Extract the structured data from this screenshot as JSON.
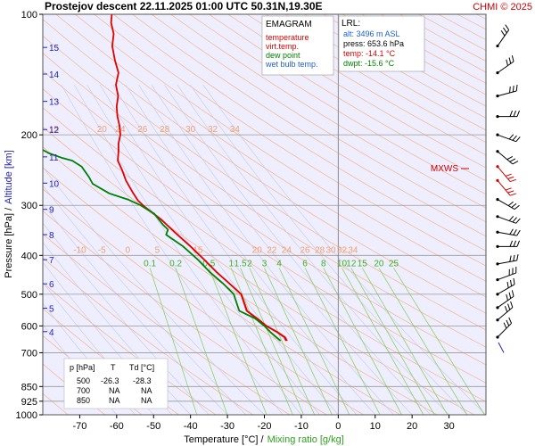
{
  "header": {
    "title": "Prostejov   descent   22.11.2025 01:00 UTC  50.31N,19.30E",
    "copyright": "CHMI © 2025"
  },
  "legend": {
    "title": "EMAGRAM",
    "items": [
      {
        "label": "temperature",
        "color": "#e00000"
      },
      {
        "label": "virt.temp.",
        "color": "#e00000"
      },
      {
        "label": "dew point",
        "color": "#008000"
      },
      {
        "label": "wet bulb temp.",
        "color": "#2060d0"
      }
    ]
  },
  "lrl": {
    "title": "LRL:",
    "alt": "alt: 3496 m ASL",
    "press": "press: 653.6 hPa",
    "temp": "temp: -14.1 °C",
    "dwpt": "dwpt: -15.6 °C"
  },
  "table": {
    "headers": [
      "p [hPa]",
      "T",
      "Td [°C]"
    ],
    "rows": [
      [
        "500",
        "-26.3",
        "-28.3"
      ],
      [
        "700",
        "NA",
        "NA"
      ],
      [
        "850",
        "NA",
        "NA"
      ]
    ]
  },
  "mxws_label": "MXWS",
  "chart_data": {
    "type": "line",
    "title": "EMAGRAM",
    "xlabel": "Temperature [°C]  /",
    "xlabel2": "Mixing ratio [g/kg]",
    "ylabel": "Pressure [hPa]  /",
    "ylabel2": "Altitude [km]",
    "xlim": [
      -80,
      40
    ],
    "ylim": [
      1000,
      100
    ],
    "y_scale": "log",
    "x_ticks": [
      -70,
      -60,
      -50,
      -40,
      -30,
      -20,
      -10,
      0,
      10,
      20,
      30
    ],
    "y_ticks": [
      100,
      200,
      300,
      400,
      500,
      600,
      700,
      850,
      925,
      1000
    ],
    "y_tick_labels": [
      "100",
      "200",
      "300",
      "400",
      "500",
      "600",
      "700",
      "850",
      "925",
      "1000"
    ],
    "altitude_ticks": [
      {
        "km": "4",
        "p": 620
      },
      {
        "km": "5",
        "p": 542
      },
      {
        "km": "6",
        "p": 471
      },
      {
        "km": "7",
        "p": 410
      },
      {
        "km": "8",
        "p": 355
      },
      {
        "km": "9",
        "p": 307
      },
      {
        "km": "10",
        "p": 264
      },
      {
        "km": "11",
        "p": 227
      },
      {
        "km": "12",
        "p": 194
      },
      {
        "km": "13",
        "p": 165
      },
      {
        "km": "14",
        "p": 141
      },
      {
        "km": "15",
        "p": 121
      }
    ],
    "mixing_ratio_labels": [
      "0.1",
      "0.2",
      "0.5",
      "1",
      "1.5",
      "2",
      "3",
      "4",
      "6",
      "8",
      "10",
      "12",
      "15",
      "20",
      "25"
    ],
    "mixing_ratio_label_x": [
      -51,
      -44,
      -35,
      -29,
      -26.5,
      -24,
      -20,
      -16,
      -9,
      -4,
      1,
      3.5,
      6.5,
      11,
      15
    ],
    "theta_labels_200": [
      "15",
      "20",
      "24",
      "26",
      "28",
      "30",
      "32",
      "34"
    ],
    "theta_labels_200_x": [
      -77,
      -64,
      -59,
      -53,
      -47,
      -40,
      -34,
      -28
    ],
    "theta_labels_400": [
      "-10",
      "-5",
      "0",
      "5",
      "15",
      "20",
      "22",
      "24",
      "26",
      "28",
      "30",
      "32",
      "34"
    ],
    "theta_labels_400_x": [
      -70,
      -64,
      -57,
      -49,
      -38,
      -22,
      -18,
      -14,
      -9,
      -5,
      -2,
      1,
      4
    ],
    "mxws_p": 245,
    "series": [
      {
        "name": "temperature",
        "color": "#e00000",
        "points": [
          [
            -14.1,
            653.6
          ],
          [
            -14.6,
            640
          ],
          [
            -16.8,
            620
          ],
          [
            -19.5,
            600
          ],
          [
            -22.0,
            575
          ],
          [
            -24.8,
            550
          ],
          [
            -26.3,
            500
          ],
          [
            -29.5,
            470
          ],
          [
            -33.0,
            440
          ],
          [
            -36.3,
            410
          ],
          [
            -40.0,
            380
          ],
          [
            -44.3,
            350
          ],
          [
            -48.0,
            325
          ],
          [
            -52.5,
            302
          ],
          [
            -54.2,
            292
          ],
          [
            -55.5,
            280
          ],
          [
            -57.5,
            260
          ],
          [
            -58.5,
            245
          ],
          [
            -59.7,
            232
          ],
          [
            -59.5,
            220
          ],
          [
            -59.5,
            210
          ],
          [
            -59.0,
            200
          ],
          [
            -59.2,
            190
          ],
          [
            -59.8,
            180
          ],
          [
            -60.0,
            170
          ],
          [
            -59.6,
            160
          ],
          [
            -60.2,
            150
          ],
          [
            -59.5,
            140
          ],
          [
            -60.5,
            130
          ],
          [
            -61.2,
            120
          ],
          [
            -60.8,
            112
          ],
          [
            -61.5,
            105
          ],
          [
            -61.3,
            100
          ]
        ]
      },
      {
        "name": "virt.temp.",
        "color": "#e00000",
        "points": [
          [
            -13.8,
            653.6
          ],
          [
            -14.3,
            640
          ],
          [
            -16.5,
            620
          ],
          [
            -19.3,
            600
          ],
          [
            -21.8,
            575
          ],
          [
            -24.6,
            550
          ],
          [
            -26.2,
            500
          ],
          [
            -29.4,
            470
          ],
          [
            -32.9,
            440
          ],
          [
            -36.2,
            410
          ],
          [
            -39.9,
            380
          ],
          [
            -44.2,
            350
          ],
          [
            -48.0,
            325
          ],
          [
            -52.5,
            302
          ],
          [
            -54.2,
            292
          ]
        ]
      },
      {
        "name": "dew point",
        "color": "#008000",
        "points": [
          [
            -15.6,
            653.6
          ],
          [
            -16.8,
            640
          ],
          [
            -18.5,
            620
          ],
          [
            -20.0,
            600
          ],
          [
            -22.5,
            575
          ],
          [
            -26.8,
            550
          ],
          [
            -28.3,
            500
          ],
          [
            -31.2,
            470
          ],
          [
            -34.8,
            440
          ],
          [
            -38.0,
            410
          ],
          [
            -42.0,
            380
          ],
          [
            -46.6,
            355
          ],
          [
            -46.1,
            345
          ],
          [
            -47.5,
            335
          ],
          [
            -49.8,
            315
          ],
          [
            -53.5,
            300
          ],
          [
            -57.0,
            290
          ],
          [
            -62.0,
            280
          ],
          [
            -66.5,
            265
          ],
          [
            -67.5,
            255
          ],
          [
            -69.5,
            240
          ],
          [
            -72.0,
            232
          ],
          [
            -75.0,
            228
          ],
          [
            -78.5,
            222
          ],
          [
            -80.0,
            218
          ]
        ]
      }
    ]
  }
}
